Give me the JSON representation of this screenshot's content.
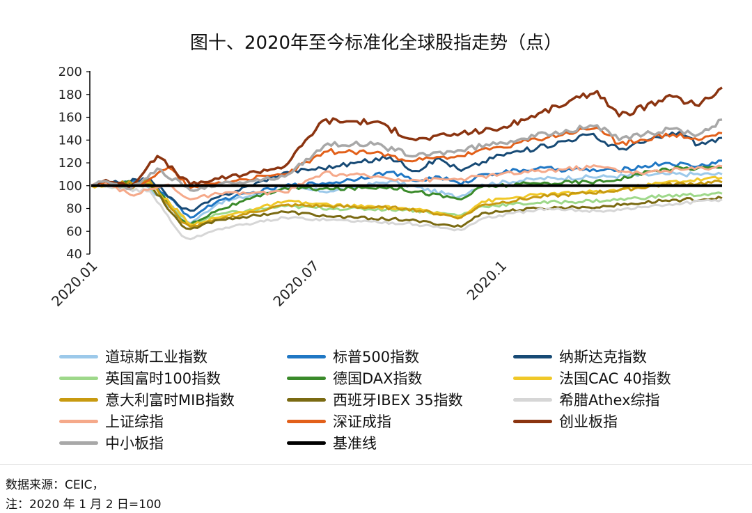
{
  "chart_data": {
    "type": "line",
    "title": "图十、2020年至今标准化全球股指走势（点）",
    "ylim": [
      40,
      200
    ],
    "yticks": [
      40,
      60,
      80,
      100,
      120,
      140,
      160,
      180,
      200
    ],
    "x_range": [
      "2020-01-02",
      "2021-05-31"
    ],
    "xticks": [
      {
        "date": "2020-01-02",
        "label": "2020.01"
      },
      {
        "date": "2020-07-01",
        "label": "2020.07"
      },
      {
        "date": "2020-12-01",
        "label": "2020.1"
      }
    ],
    "grid": false,
    "legend_position": "bottom",
    "series": [
      {
        "name": "道琼斯工业指数",
        "color": "#9cc9ea",
        "width": 3,
        "points": [
          [
            "2020-01-02",
            100
          ],
          [
            "2020-02-12",
            104
          ],
          [
            "2020-03-23",
            67
          ],
          [
            "2020-04-15",
            85
          ],
          [
            "2020-06-08",
            98
          ],
          [
            "2020-07-15",
            95
          ],
          [
            "2020-09-02",
            104
          ],
          [
            "2020-10-28",
            90
          ],
          [
            "2020-11-16",
            101
          ],
          [
            "2020-12-31",
            106
          ],
          [
            "2021-02-26",
            108
          ],
          [
            "2021-04-15",
            110
          ],
          [
            "2021-05-31",
            110
          ]
        ]
      },
      {
        "name": "标普500指数",
        "color": "#1f77c4",
        "width": 3,
        "points": [
          [
            "2020-01-02",
            100
          ],
          [
            "2020-02-19",
            104
          ],
          [
            "2020-03-23",
            72
          ],
          [
            "2020-04-15",
            87
          ],
          [
            "2020-06-08",
            100
          ],
          [
            "2020-07-20",
            103
          ],
          [
            "2020-09-02",
            112
          ],
          [
            "2020-09-23",
            104
          ],
          [
            "2020-10-12",
            108
          ],
          [
            "2020-10-30",
            101
          ],
          [
            "2020-11-16",
            110
          ],
          [
            "2020-12-31",
            115
          ],
          [
            "2021-03-04",
            113
          ],
          [
            "2021-04-15",
            120
          ],
          [
            "2021-05-12",
            117
          ],
          [
            "2021-05-31",
            122
          ]
        ]
      },
      {
        "name": "纳斯达克指数",
        "color": "#174a75",
        "width": 3,
        "points": [
          [
            "2020-01-02",
            100
          ],
          [
            "2020-02-19",
            106
          ],
          [
            "2020-03-16",
            80
          ],
          [
            "2020-03-23",
            78
          ],
          [
            "2020-04-15",
            90
          ],
          [
            "2020-06-10",
            112
          ],
          [
            "2020-07-20",
            117
          ],
          [
            "2020-09-02",
            125
          ],
          [
            "2020-09-23",
            113
          ],
          [
            "2020-10-12",
            124
          ],
          [
            "2020-10-30",
            113
          ],
          [
            "2020-12-01",
            127
          ],
          [
            "2020-12-31",
            133
          ],
          [
            "2021-02-12",
            145
          ],
          [
            "2021-03-08",
            132
          ],
          [
            "2021-04-26",
            147
          ],
          [
            "2021-05-12",
            136
          ],
          [
            "2021-05-31",
            142
          ]
        ]
      },
      {
        "name": "英国富时100指数",
        "color": "#9ed88a",
        "width": 3,
        "points": [
          [
            "2020-01-02",
            100
          ],
          [
            "2020-02-19",
            99
          ],
          [
            "2020-03-23",
            66
          ],
          [
            "2020-04-15",
            75
          ],
          [
            "2020-06-08",
            82
          ],
          [
            "2020-07-15",
            80
          ],
          [
            "2020-09-15",
            79
          ],
          [
            "2020-10-30",
            74
          ],
          [
            "2020-11-16",
            82
          ],
          [
            "2020-12-31",
            85
          ],
          [
            "2021-02-26",
            87
          ],
          [
            "2021-04-15",
            91
          ],
          [
            "2021-05-31",
            93
          ]
        ]
      },
      {
        "name": "德国DAX指数",
        "color": "#3a8a2a",
        "width": 3,
        "points": [
          [
            "2020-01-02",
            100
          ],
          [
            "2020-02-19",
            104
          ],
          [
            "2020-03-16",
            70
          ],
          [
            "2020-03-23",
            66
          ],
          [
            "2020-04-15",
            79
          ],
          [
            "2020-06-08",
            98
          ],
          [
            "2020-07-15",
            97
          ],
          [
            "2020-09-02",
            99
          ],
          [
            "2020-10-30",
            88
          ],
          [
            "2020-11-16",
            99
          ],
          [
            "2020-12-31",
            102
          ],
          [
            "2021-02-26",
            104
          ],
          [
            "2021-04-15",
            115
          ],
          [
            "2021-05-31",
            116
          ]
        ]
      },
      {
        "name": "法国CAC 40指数",
        "color": "#f0c828",
        "width": 3,
        "points": [
          [
            "2020-01-02",
            100
          ],
          [
            "2020-02-19",
            102
          ],
          [
            "2020-03-23",
            66
          ],
          [
            "2020-04-15",
            72
          ],
          [
            "2020-06-08",
            86
          ],
          [
            "2020-07-15",
            83
          ],
          [
            "2020-09-15",
            80
          ],
          [
            "2020-10-30",
            73
          ],
          [
            "2020-11-16",
            86
          ],
          [
            "2020-12-31",
            92
          ],
          [
            "2021-02-26",
            95
          ],
          [
            "2021-04-15",
            103
          ],
          [
            "2021-05-31",
            107
          ]
        ]
      },
      {
        "name": "意大利富时MIB指数",
        "color": "#c89a10",
        "width": 3,
        "points": [
          [
            "2020-01-02",
            100
          ],
          [
            "2020-02-19",
            104
          ],
          [
            "2020-03-16",
            68
          ],
          [
            "2020-03-23",
            64
          ],
          [
            "2020-04-15",
            70
          ],
          [
            "2020-06-08",
            83
          ],
          [
            "2020-07-15",
            82
          ],
          [
            "2020-09-15",
            80
          ],
          [
            "2020-10-30",
            72
          ],
          [
            "2020-11-16",
            83
          ],
          [
            "2020-12-31",
            90
          ],
          [
            "2021-02-26",
            95
          ],
          [
            "2021-04-15",
            101
          ],
          [
            "2021-05-31",
            103
          ]
        ]
      },
      {
        "name": "西班牙IBEX 35指数",
        "color": "#7a6a12",
        "width": 3,
        "points": [
          [
            "2020-01-02",
            100
          ],
          [
            "2020-02-19",
            101
          ],
          [
            "2020-03-16",
            65
          ],
          [
            "2020-03-23",
            62
          ],
          [
            "2020-04-15",
            70
          ],
          [
            "2020-06-08",
            77
          ],
          [
            "2020-07-15",
            73
          ],
          [
            "2020-09-15",
            70
          ],
          [
            "2020-10-30",
            64
          ],
          [
            "2020-11-16",
            76
          ],
          [
            "2020-12-31",
            80
          ],
          [
            "2021-02-26",
            82
          ],
          [
            "2021-04-15",
            87
          ],
          [
            "2021-05-31",
            89
          ]
        ]
      },
      {
        "name": "希腊Athex综指",
        "color": "#d6d6d6",
        "width": 3,
        "points": [
          [
            "2020-01-02",
            100
          ],
          [
            "2020-02-19",
            95
          ],
          [
            "2020-03-16",
            56
          ],
          [
            "2020-03-23",
            53
          ],
          [
            "2020-04-15",
            62
          ],
          [
            "2020-06-08",
            72
          ],
          [
            "2020-07-15",
            70
          ],
          [
            "2020-09-15",
            67
          ],
          [
            "2020-10-30",
            61
          ],
          [
            "2020-11-16",
            71
          ],
          [
            "2020-12-31",
            79
          ],
          [
            "2021-02-26",
            78
          ],
          [
            "2021-04-15",
            83
          ],
          [
            "2021-05-31",
            88
          ]
        ]
      },
      {
        "name": "上证综指",
        "color": "#f5a98a",
        "width": 3,
        "points": [
          [
            "2020-01-02",
            100
          ],
          [
            "2020-01-14",
            102
          ],
          [
            "2020-02-03",
            92
          ],
          [
            "2020-03-05",
            101
          ],
          [
            "2020-03-23",
            88
          ],
          [
            "2020-04-15",
            93
          ],
          [
            "2020-06-08",
            94
          ],
          [
            "2020-07-09",
            111
          ],
          [
            "2020-08-20",
            108
          ],
          [
            "2020-09-23",
            105
          ],
          [
            "2020-10-30",
            106
          ],
          [
            "2020-12-01",
            110
          ],
          [
            "2021-02-18",
            117
          ],
          [
            "2021-03-25",
            111
          ],
          [
            "2021-05-31",
            117
          ]
        ]
      },
      {
        "name": "深证成指",
        "color": "#e2601a",
        "width": 3,
        "points": [
          [
            "2020-01-02",
            100
          ],
          [
            "2020-01-14",
            104
          ],
          [
            "2020-02-03",
            97
          ],
          [
            "2020-03-05",
            116
          ],
          [
            "2020-03-23",
            98
          ],
          [
            "2020-04-15",
            103
          ],
          [
            "2020-06-08",
            110
          ],
          [
            "2020-07-13",
            130
          ],
          [
            "2020-08-20",
            129
          ],
          [
            "2020-09-23",
            122
          ],
          [
            "2020-10-30",
            126
          ],
          [
            "2020-12-01",
            134
          ],
          [
            "2021-02-18",
            151
          ],
          [
            "2021-03-08",
            137
          ],
          [
            "2021-04-21",
            145
          ],
          [
            "2021-05-12",
            140
          ],
          [
            "2021-05-31",
            146
          ]
        ]
      },
      {
        "name": "创业板指",
        "color": "#8b3410",
        "width": 3.5,
        "points": [
          [
            "2020-01-02",
            100
          ],
          [
            "2020-01-14",
            105
          ],
          [
            "2020-02-03",
            99
          ],
          [
            "2020-02-25",
            126
          ],
          [
            "2020-03-23",
            101
          ],
          [
            "2020-04-15",
            106
          ],
          [
            "2020-06-08",
            117
          ],
          [
            "2020-07-09",
            157
          ],
          [
            "2020-08-20",
            156
          ],
          [
            "2020-09-23",
            140
          ],
          [
            "2020-10-30",
            146
          ],
          [
            "2020-12-01",
            150
          ],
          [
            "2021-02-18",
            183
          ],
          [
            "2021-03-08",
            161
          ],
          [
            "2021-04-21",
            178
          ],
          [
            "2021-05-12",
            170
          ],
          [
            "2021-05-31",
            186
          ]
        ]
      },
      {
        "name": "中小板指",
        "color": "#a8a8a8",
        "width": 3.5,
        "points": [
          [
            "2020-01-02",
            100
          ],
          [
            "2020-01-14",
            104
          ],
          [
            "2020-02-03",
            97
          ],
          [
            "2020-02-25",
            115
          ],
          [
            "2020-03-23",
            96
          ],
          [
            "2020-04-15",
            101
          ],
          [
            "2020-06-08",
            108
          ],
          [
            "2020-07-13",
            137
          ],
          [
            "2020-08-20",
            136
          ],
          [
            "2020-09-23",
            126
          ],
          [
            "2020-10-30",
            131
          ],
          [
            "2020-12-01",
            138
          ],
          [
            "2021-02-18",
            153
          ],
          [
            "2021-03-08",
            140
          ],
          [
            "2021-04-21",
            150
          ],
          [
            "2021-05-12",
            145
          ],
          [
            "2021-05-31",
            158
          ]
        ]
      },
      {
        "name": "基准线",
        "color": "#000000",
        "width": 4,
        "points": [
          [
            "2020-01-02",
            100
          ],
          [
            "2021-05-31",
            100
          ]
        ]
      }
    ]
  },
  "footnotes": {
    "source": "数据来源：CEIC，",
    "note": "注：2020 年 1 月 2 日=100"
  }
}
